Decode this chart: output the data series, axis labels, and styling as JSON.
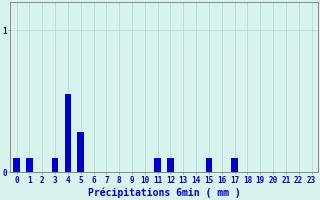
{
  "title": "",
  "xlabel": "Précipitations 6min ( mm )",
  "ylabel": "",
  "background_color": "#d8f2ee",
  "bar_color": "#0000cc",
  "grid_color": "#b0d8d8",
  "axis_color": "#888888",
  "ylim": [
    0,
    1.2
  ],
  "yticks": [
    0,
    1
  ],
  "xlim": [
    -0.5,
    23.5
  ],
  "xticks": [
    0,
    1,
    2,
    3,
    4,
    5,
    6,
    7,
    8,
    9,
    10,
    11,
    12,
    13,
    14,
    15,
    16,
    17,
    18,
    19,
    20,
    21,
    22,
    23
  ],
  "bar_values": [
    0.1,
    0.1,
    0.0,
    0.1,
    0.55,
    0.28,
    0.0,
    0.0,
    0.0,
    0.0,
    0.0,
    0.1,
    0.1,
    0.0,
    0.0,
    0.1,
    0.0,
    0.1,
    0.0,
    0.0,
    0.0,
    0.0,
    0.0,
    0.0
  ],
  "tick_fontsize": 5.5,
  "label_fontsize": 7,
  "bar_width": 0.5
}
